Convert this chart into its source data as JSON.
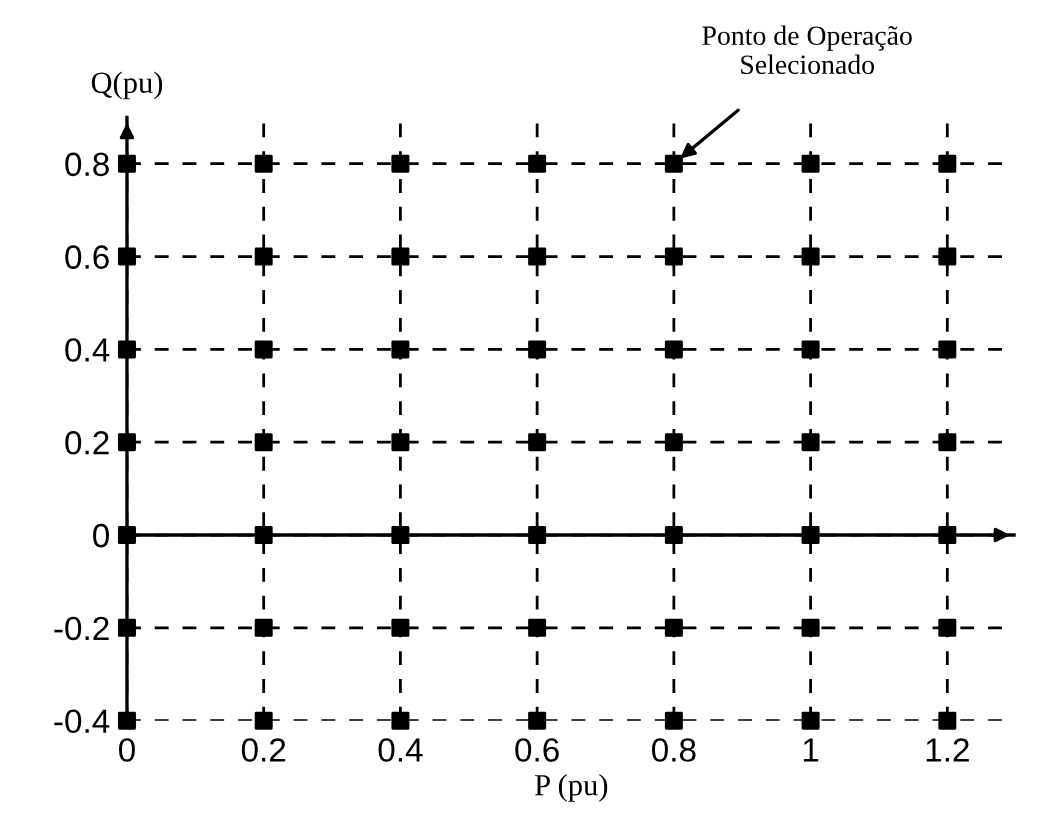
{
  "chart_data": {
    "type": "scatter",
    "xlabel": "P (pu)",
    "ylabel": "Q(pu)",
    "x": [
      0,
      0.2,
      0.4,
      0.6,
      0.8,
      1,
      1.2,
      0,
      0.2,
      0.4,
      0.6,
      0.8,
      1,
      1.2,
      0,
      0.2,
      0.4,
      0.6,
      0.8,
      1,
      1.2,
      0,
      0.2,
      0.4,
      0.6,
      0.8,
      1,
      1.2,
      0,
      0.2,
      0.4,
      0.6,
      0.8,
      1,
      1.2,
      0,
      0.2,
      0.4,
      0.6,
      0.8,
      1,
      1.2,
      0,
      0.2,
      0.4,
      0.6,
      0.8,
      1,
      1.2
    ],
    "series": [
      {
        "color": "#000000",
        "values": [
          0.8,
          0.8,
          0.8,
          0.8,
          0.8,
          0.8,
          0.8,
          0.6,
          0.6,
          0.6,
          0.6,
          0.6,
          0.6,
          0.6,
          0.4,
          0.4,
          0.4,
          0.4,
          0.4,
          0.4,
          0.4,
          0.2,
          0.2,
          0.2,
          0.2,
          0.2,
          0.2,
          0.2,
          0,
          0,
          0,
          0,
          0,
          0,
          0,
          -0.2,
          -0.2,
          -0.2,
          -0.2,
          -0.2,
          -0.2,
          -0.2,
          -0.4,
          -0.4,
          -0.4,
          -0.4,
          -0.4,
          -0.4,
          -0.4
        ]
      }
    ],
    "marker": "square",
    "grid": true,
    "xlim": [
      0,
      1.3
    ],
    "ylim": [
      -0.4,
      0.9
    ],
    "xticks": [
      0,
      0.2,
      0.4,
      0.6,
      0.8,
      1,
      1.2
    ],
    "yticks": [
      -0.4,
      -0.2,
      0,
      0.2,
      0.4,
      0.6,
      0.8
    ],
    "ref_lines": [
      {
        "axis": "y",
        "value": 0,
        "color": "#000000",
        "line_style": "solid"
      }
    ],
    "annotations": [
      {
        "text": "Ponto de Operação\nSelecionado",
        "x": 0.8,
        "y": 0.8
      }
    ]
  }
}
